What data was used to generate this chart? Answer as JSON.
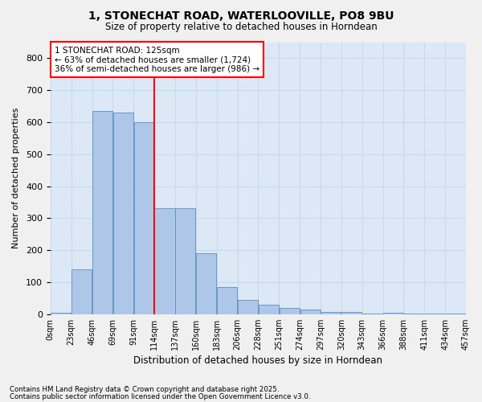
{
  "title_line1": "1, STONECHAT ROAD, WATERLOOVILLE, PO8 9BU",
  "title_line2": "Size of property relative to detached houses in Horndean",
  "xlabel": "Distribution of detached houses by size in Horndean",
  "ylabel": "Number of detached properties",
  "bin_labels": [
    "0sqm",
    "23sqm",
    "46sqm",
    "69sqm",
    "91sqm",
    "114sqm",
    "137sqm",
    "160sqm",
    "183sqm",
    "206sqm",
    "228sqm",
    "251sqm",
    "274sqm",
    "297sqm",
    "320sqm",
    "343sqm",
    "366sqm",
    "388sqm",
    "411sqm",
    "434sqm",
    "457sqm"
  ],
  "bar_heights": [
    5,
    140,
    635,
    630,
    600,
    330,
    330,
    190,
    85,
    45,
    30,
    20,
    15,
    8,
    8,
    3,
    5,
    2,
    1,
    1
  ],
  "bar_color": "#aec6e8",
  "bar_edge_color": "#5a8fc0",
  "grid_color": "#c8d8e8",
  "background_color": "#dce8f5",
  "fig_background_color": "#f0f0f0",
  "vline_color": "red",
  "vline_position": 4.5,
  "annotation_text": "1 STONECHAT ROAD: 125sqm\n← 63% of detached houses are smaller (1,724)\n36% of semi-detached houses are larger (986) →",
  "footnote1": "Contains HM Land Registry data © Crown copyright and database right 2025.",
  "footnote2": "Contains public sector information licensed under the Open Government Licence v3.0.",
  "ylim": [
    0,
    850
  ],
  "yticks": [
    0,
    100,
    200,
    300,
    400,
    500,
    600,
    700,
    800
  ]
}
